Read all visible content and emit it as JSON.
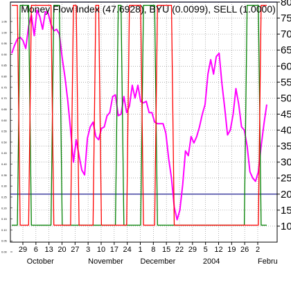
{
  "chart_data": {
    "type": "line",
    "title": "Money Flow Index (47.6928), BYU (0.0099), SELL (1.0000)",
    "ylim": [
      5,
      80
    ],
    "right_ticks": [
      10,
      15,
      20,
      25,
      30,
      35,
      40,
      45,
      50,
      55,
      60,
      65,
      70,
      75,
      80
    ],
    "left_ticks": [
      "1.05",
      "1.00",
      "0.95",
      "0.90",
      "0.85",
      "0.80",
      "0.75",
      "0.70",
      "0.65",
      "0.60",
      "0.55",
      "0.50",
      "0.45",
      "0.40",
      "0.35",
      "0.30",
      "0.25",
      "0.20",
      "0.15",
      "0.10",
      "0.05",
      "0.00"
    ],
    "reference_lines": [
      80,
      20
    ],
    "x_day_labels": [
      "29",
      "6",
      "13",
      "20",
      "27",
      "3",
      "10",
      "17",
      "24",
      "1",
      "8",
      "15",
      "22",
      "29",
      "5",
      "12",
      "19",
      "26",
      "2"
    ],
    "x_month_labels": [
      "October",
      "November",
      "December",
      "2004",
      "Febru"
    ],
    "grid": true,
    "colors": {
      "mfi": "#ff00ff",
      "buy": "#008000",
      "sell": "#ff0000",
      "reference": "#000080",
      "grid": "#808080"
    },
    "series": [
      {
        "key": "mfi",
        "values": [
          64,
          66.5,
          68.5,
          69,
          68,
          65.5,
          72.5,
          76,
          69.5,
          77.5,
          75.5,
          71.5,
          77,
          76.5,
          73,
          71,
          71.5,
          70,
          62.5,
          56.5,
          49,
          40,
          30,
          37,
          32,
          27.5,
          26,
          37.5,
          41,
          42.5,
          38,
          37,
          40.5,
          41,
          44.5,
          45.5,
          50.5,
          51,
          44.5,
          45,
          50.5,
          45.5,
          47.5,
          54,
          50,
          54,
          49,
          48.5,
          49,
          45.5,
          45.5,
          42.5,
          42,
          42,
          42,
          39,
          31,
          25,
          16,
          12,
          15,
          23,
          33.5,
          32,
          38,
          36,
          38,
          41,
          45,
          48,
          57.5,
          62,
          57.5,
          63,
          64,
          54.5,
          47,
          38.5,
          40,
          45,
          53,
          48,
          41,
          40,
          35,
          27,
          25,
          24,
          27,
          35,
          42,
          48
        ]
      },
      {
        "key": "buy",
        "values": [
          0,
          0,
          0,
          1,
          1,
          1,
          1,
          0,
          0,
          0,
          0,
          0,
          0,
          0,
          0,
          1,
          1,
          1,
          0,
          0,
          0,
          0,
          0,
          0,
          0,
          0,
          0,
          0,
          0,
          0,
          0,
          0,
          0,
          0,
          0,
          0,
          0,
          0,
          1,
          1,
          0,
          0,
          0,
          0,
          0,
          0,
          0,
          1,
          1,
          1,
          1,
          1,
          0,
          0,
          0,
          0,
          0,
          0,
          0,
          0,
          0,
          0,
          0,
          0,
          0,
          0,
          0,
          0,
          0,
          0,
          0,
          0,
          0,
          0,
          0,
          0,
          0,
          0,
          0,
          0,
          0,
          0,
          0,
          0,
          1,
          1,
          1,
          1,
          1,
          0,
          0,
          0
        ]
      },
      {
        "key": "sell",
        "values": [
          1,
          1,
          1,
          0,
          0,
          0,
          0,
          1,
          1,
          1,
          1,
          1,
          1,
          1,
          1,
          0,
          0,
          0,
          0,
          0,
          0,
          0,
          1,
          1,
          0,
          0,
          0,
          0,
          0,
          0,
          1,
          1,
          0,
          0,
          0,
          0,
          0,
          0,
          0,
          0,
          0,
          0,
          1,
          1,
          1,
          1,
          1,
          0,
          0,
          0,
          0,
          0,
          1,
          1,
          1,
          1,
          1,
          1,
          0,
          0,
          0,
          0,
          0,
          0,
          0,
          0,
          0,
          0,
          0,
          0,
          0,
          0,
          0,
          0,
          0,
          0,
          0,
          0,
          0,
          0,
          0,
          0,
          0,
          0,
          0,
          0,
          0,
          0,
          0,
          1,
          1,
          1
        ]
      }
    ]
  }
}
